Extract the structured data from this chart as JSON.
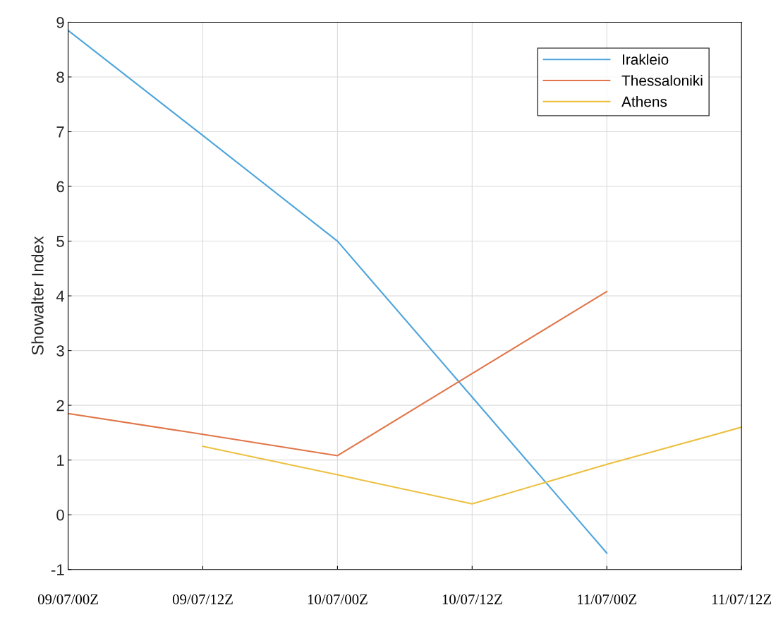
{
  "chart_data": {
    "type": "line",
    "ylabel": "Showalter Index",
    "categories": [
      "09/07/00Z",
      "09/07/12Z",
      "10/07/00Z",
      "10/07/12Z",
      "11/07/00Z",
      "11/07/12Z"
    ],
    "series": [
      {
        "name": "Irakleio",
        "color": "#4da4db",
        "values": [
          8.85,
          6.93,
          5.0,
          2.15,
          -0.7,
          null
        ]
      },
      {
        "name": "Thessaloniki",
        "color": "#e0764a",
        "values": [
          1.85,
          1.47,
          1.08,
          2.58,
          4.08,
          null
        ]
      },
      {
        "name": "Athens",
        "color": "#ecc040",
        "values": [
          null,
          1.25,
          0.73,
          0.2,
          0.92,
          1.6
        ]
      }
    ],
    "ylim": [
      -1,
      9
    ],
    "yticks": [
      -1,
      0,
      1,
      2,
      3,
      4,
      5,
      6,
      7,
      8,
      9
    ],
    "grid": true,
    "legend": "top right",
    "marker": "none",
    "line_style": "solid"
  }
}
